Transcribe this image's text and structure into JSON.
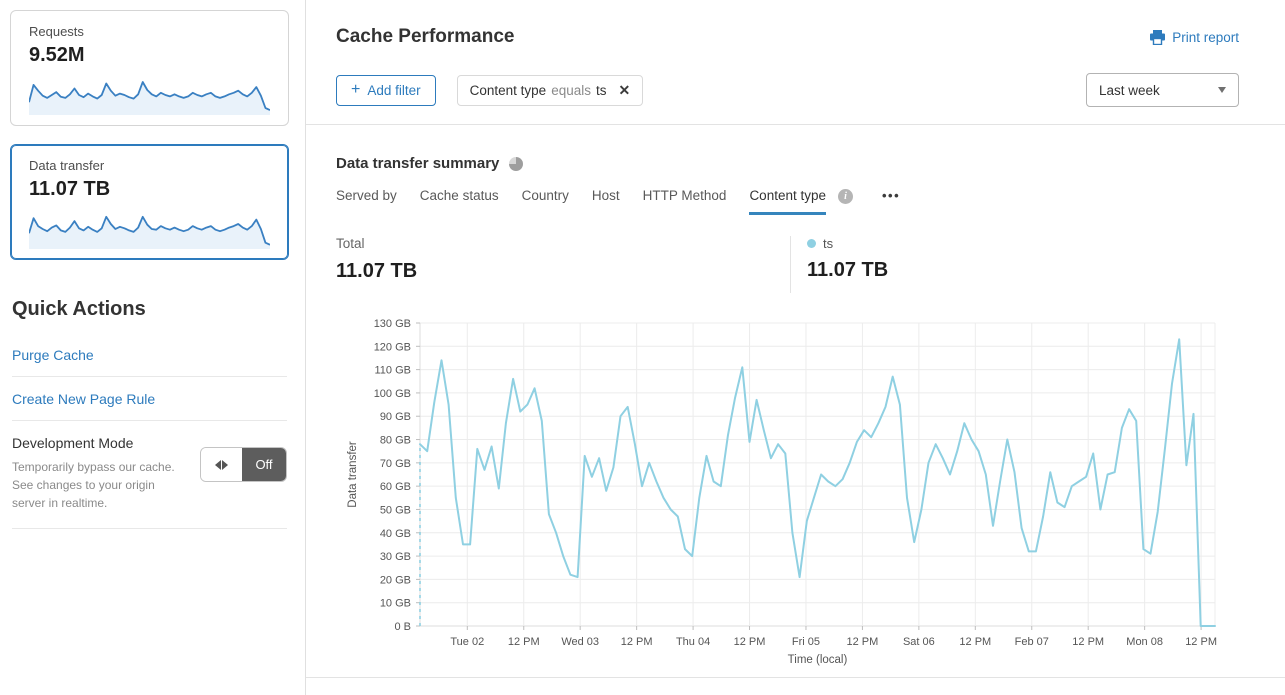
{
  "sidebar": {
    "cards": [
      {
        "title": "Requests",
        "value": "9.52M"
      },
      {
        "title": "Data transfer",
        "value": "11.07 TB",
        "selected": true
      }
    ],
    "quick_actions": {
      "title": "Quick Actions",
      "links": [
        "Purge Cache",
        "Create New Page Rule"
      ],
      "dev_mode": {
        "title": "Development Mode",
        "description": "Temporarily bypass our cache. See changes to your origin server in realtime.",
        "state_label": "Off"
      }
    }
  },
  "header": {
    "title": "Cache Performance",
    "print_report": "Print report",
    "add_filter": {
      "icon": "+",
      "label": "Add filter"
    },
    "filter_chip": {
      "field": "Content type",
      "operator": "equals",
      "value": "ts",
      "close_icon": "✕"
    },
    "time_range": "Last week"
  },
  "summary": {
    "title": "Data transfer summary",
    "tabs": [
      {
        "label": "Served by",
        "active": false
      },
      {
        "label": "Cache status",
        "active": false
      },
      {
        "label": "Country",
        "active": false
      },
      {
        "label": "Host",
        "active": false
      },
      {
        "label": "HTTP Method",
        "active": false
      },
      {
        "label": "Content type",
        "active": true,
        "has_info": true
      }
    ],
    "more_icon": "•••",
    "total": {
      "label": "Total",
      "value": "11.07 TB"
    },
    "legend": {
      "series": "ts",
      "value": "11.07 TB",
      "color": "#8fd0e2"
    }
  },
  "colors": {
    "accent": "#2d7bbd",
    "sparkline": "#3a80c2",
    "sparkline_fill": "#e9f2fa",
    "chart_line": "#8fd0e2",
    "tab_underline": "#3585bd",
    "toggle_dark": "#5d5d5d"
  },
  "chart_data": [
    {
      "id": "requests-sparkline",
      "type": "line",
      "title": "Requests (last week sparkline)",
      "values": [
        30,
        78,
        62,
        48,
        42,
        50,
        58,
        45,
        42,
        52,
        68,
        50,
        44,
        54,
        46,
        40,
        50,
        82,
        62,
        48,
        54,
        50,
        44,
        40,
        52,
        86,
        64,
        52,
        46,
        56,
        50,
        46,
        52,
        46,
        42,
        46,
        56,
        50,
        46,
        52,
        56,
        46,
        42,
        46,
        52,
        56,
        62,
        52,
        46,
        56,
        72,
        48,
        14,
        8
      ]
    },
    {
      "id": "data-transfer-sparkline",
      "type": "line",
      "title": "Data transfer (last week sparkline)",
      "values": [
        38,
        80,
        58,
        50,
        44,
        54,
        60,
        46,
        42,
        54,
        72,
        52,
        46,
        56,
        48,
        42,
        52,
        84,
        64,
        50,
        56,
        52,
        46,
        42,
        54,
        84,
        62,
        50,
        48,
        58,
        52,
        48,
        54,
        48,
        44,
        48,
        58,
        52,
        48,
        54,
        58,
        48,
        44,
        48,
        54,
        58,
        64,
        54,
        48,
        58,
        76,
        50,
        12,
        6
      ]
    },
    {
      "id": "data-transfer-summary",
      "type": "line",
      "title": "Data transfer summary — ts",
      "xlabel": "Time (local)",
      "ylabel": "Data transfer",
      "unit": "GB",
      "ylim": [
        0,
        130
      ],
      "ytick_step": 10,
      "ytick_labels": [
        "0 B",
        "10 GB",
        "20 GB",
        "30 GB",
        "40 GB",
        "50 GB",
        "60 GB",
        "70 GB",
        "80 GB",
        "90 GB",
        "100 GB",
        "110 GB",
        "120 GB",
        "130 GB"
      ],
      "xtick_labels": [
        "Tue 02",
        "12 PM",
        "Wed 03",
        "12 PM",
        "Thu 04",
        "12 PM",
        "Fri 05",
        "12 PM",
        "Sat 06",
        "12 PM",
        "Feb 07",
        "12 PM",
        "Mon 08",
        "12 PM"
      ],
      "grid": true,
      "dashed_start": true,
      "legend_position": "above-chart",
      "series": [
        {
          "name": "ts",
          "color": "#8fd0e2",
          "values": [
            78,
            75,
            96,
            114,
            95,
            55,
            35,
            35,
            76,
            67,
            77,
            59,
            87,
            106,
            92,
            95,
            102,
            88,
            48,
            40,
            30,
            22,
            21,
            73,
            64,
            72,
            58,
            68,
            90,
            94,
            78,
            60,
            70,
            62,
            55,
            50,
            47,
            33,
            30,
            55,
            73,
            62,
            60,
            82,
            98,
            111,
            79,
            97,
            84,
            72,
            78,
            74,
            40,
            21,
            45,
            55,
            65,
            62,
            60,
            63,
            70,
            79,
            84,
            81,
            87,
            94,
            107,
            95,
            55,
            36,
            50,
            70,
            78,
            72,
            65,
            75,
            87,
            80,
            75,
            65,
            43,
            62,
            80,
            66,
            42,
            32,
            32,
            47,
            66,
            53,
            51,
            60,
            62,
            64,
            74,
            50,
            65,
            66,
            85,
            93,
            88,
            33,
            31,
            49,
            76,
            104,
            123,
            69,
            91,
            0,
            0,
            0
          ]
        }
      ]
    }
  ]
}
